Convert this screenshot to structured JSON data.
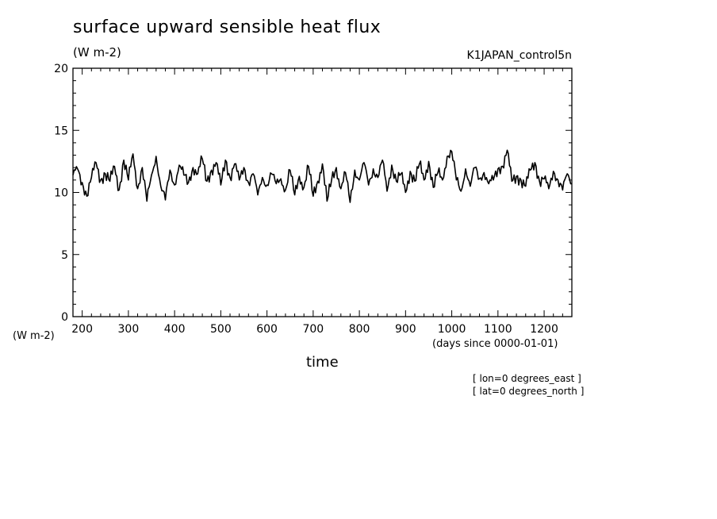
{
  "chart_data": {
    "type": "line",
    "title": "surface upward sensible heat flux",
    "units": "(W m-2)",
    "dataset": "K1JAPAN_control5n",
    "xlabel": "time",
    "xunits": "(days since 0000-01-01)",
    "ylabel_units": "(W m-2)",
    "annotations": [
      "[ lon=0 degrees_east ]",
      "[ lat=0 degrees_north ]"
    ],
    "xlim": [
      180,
      1260
    ],
    "ylim": [
      0,
      20
    ],
    "xticks": [
      200,
      300,
      400,
      500,
      600,
      700,
      800,
      900,
      1000,
      1100,
      1200
    ],
    "yticks": [
      0,
      5,
      10,
      15,
      20
    ],
    "grid": false,
    "legend": "none",
    "series": [
      {
        "x": [
          180,
          190,
          200,
          210,
          220,
          230,
          240,
          250,
          260,
          270,
          280,
          290,
          300,
          310,
          320,
          330,
          340,
          350,
          360,
          370,
          380,
          390,
          400,
          410,
          420,
          430,
          440,
          450,
          460,
          470,
          480,
          490,
          500,
          510,
          520,
          530,
          540,
          550,
          560,
          570,
          580,
          590,
          600,
          610,
          620,
          630,
          640,
          650,
          660,
          670,
          680,
          690,
          700,
          710,
          720,
          730,
          740,
          750,
          760,
          770,
          780,
          790,
          800,
          810,
          820,
          830,
          840,
          850,
          860,
          870,
          880,
          890,
          900,
          910,
          920,
          930,
          940,
          950,
          960,
          970,
          980,
          990,
          1000,
          1010,
          1020,
          1030,
          1040,
          1050,
          1060,
          1070,
          1080,
          1090,
          1100,
          1110,
          1120,
          1130,
          1140,
          1150,
          1160,
          1170,
          1180,
          1190,
          1200,
          1210,
          1220,
          1230,
          1240,
          1250,
          1260
        ],
        "y": [
          11.4,
          11.9,
          10.8,
          9.7,
          11.2,
          12.4,
          11.0,
          11.5,
          10.9,
          12.1,
          10.2,
          12.6,
          11.0,
          13.1,
          10.3,
          12.0,
          9.3,
          11.4,
          12.9,
          10.5,
          9.4,
          11.8,
          10.6,
          12.2,
          11.4,
          10.8,
          12.0,
          11.5,
          12.7,
          10.9,
          11.8,
          12.4,
          10.6,
          12.6,
          11.2,
          12.3,
          11.0,
          12.0,
          10.8,
          11.5,
          9.8,
          11.2,
          10.6,
          11.5,
          10.7,
          11.1,
          10.2,
          11.8,
          9.8,
          11.3,
          10.4,
          12.1,
          9.7,
          10.9,
          12.3,
          9.3,
          11.0,
          12.0,
          10.3,
          11.6,
          9.2,
          11.8,
          11.0,
          12.4,
          10.6,
          11.9,
          11.2,
          12.6,
          10.1,
          12.2,
          10.9,
          11.5,
          10.0,
          11.7,
          10.9,
          12.3,
          11.0,
          12.5,
          10.4,
          11.6,
          11.0,
          12.9,
          13.3,
          11.0,
          10.1,
          11.9,
          10.5,
          12.0,
          11.1,
          11.6,
          10.7,
          11.0,
          11.9,
          12.1,
          13.4,
          10.9,
          11.3,
          11.0,
          10.5,
          11.8,
          12.4,
          10.9,
          11.1,
          10.3,
          11.7,
          11.0,
          10.2,
          11.5,
          10.7
        ]
      }
    ]
  }
}
